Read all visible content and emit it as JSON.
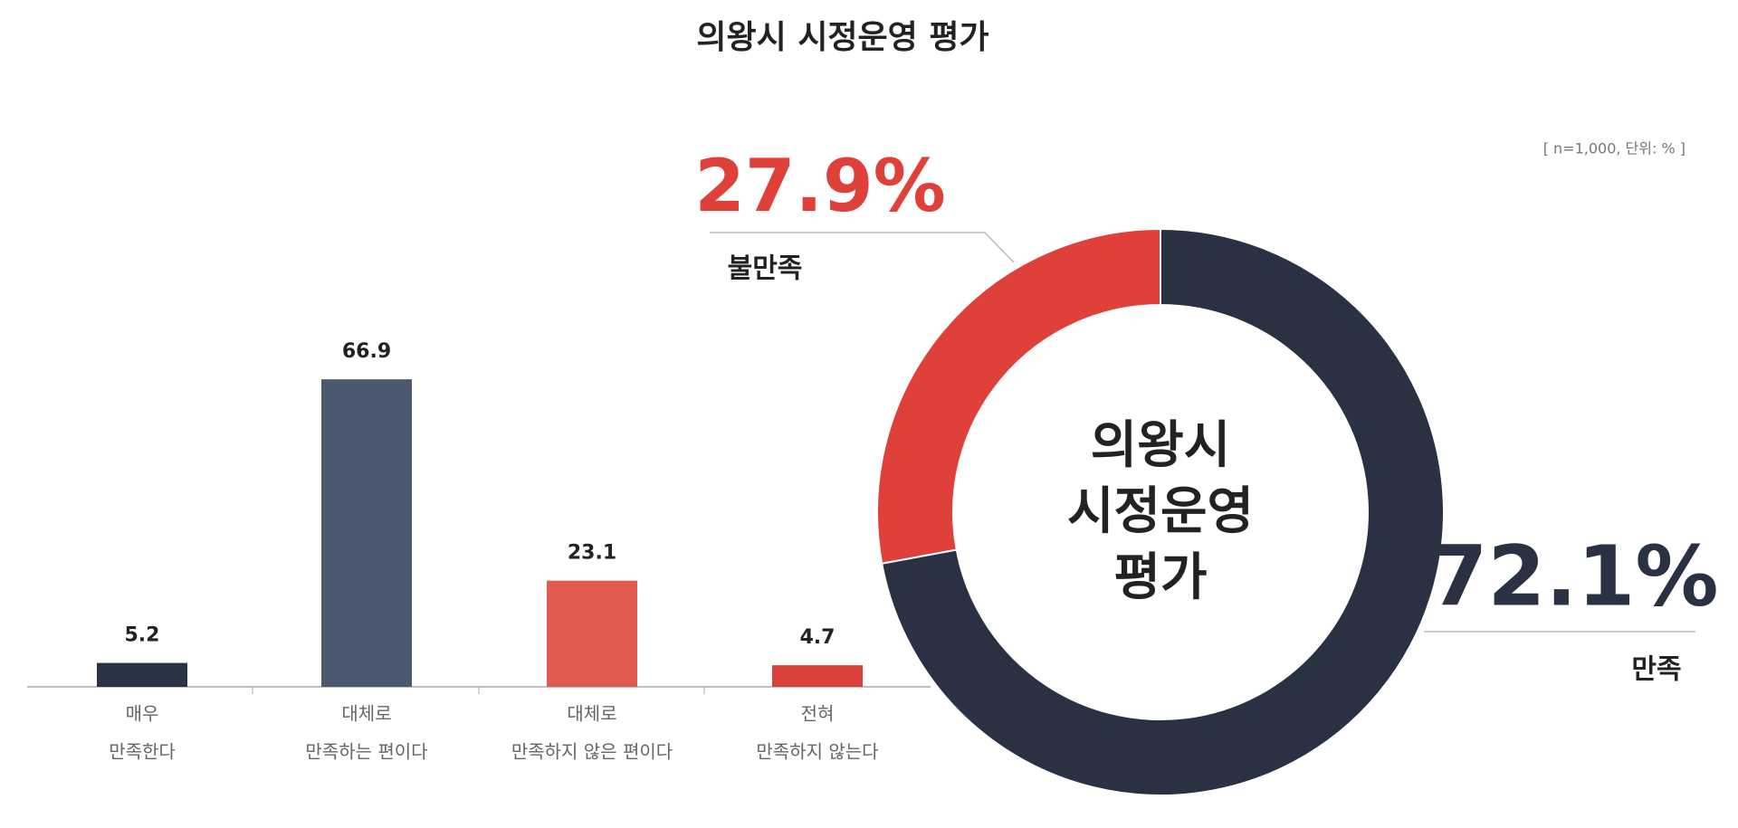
{
  "title": "의왕시 시정운영 평가",
  "note": "[ n=1,000, 단위: % ]",
  "chart_data": [
    {
      "type": "bar",
      "categories": [
        [
          "매우",
          "만족한다"
        ],
        [
          "대체로",
          "만족하는 편이다"
        ],
        [
          "대체로",
          "만족하지 않은 편이다"
        ],
        [
          "전혀",
          "만족하지 않는다"
        ]
      ],
      "values": [
        5.2,
        66.9,
        23.1,
        4.7
      ],
      "colors": [
        "#2b3444",
        "#4a5870",
        "#e05a50",
        "#d8423a"
      ]
    },
    {
      "type": "pie",
      "labels": [
        "만족",
        "불만족"
      ],
      "values": [
        72.1,
        27.9
      ],
      "value_labels": [
        "72.1%",
        "27.9%"
      ],
      "colors": [
        "#2a3142",
        "#e0403a"
      ],
      "center_label": [
        "의왕시",
        "시정운영",
        "평가"
      ]
    }
  ]
}
